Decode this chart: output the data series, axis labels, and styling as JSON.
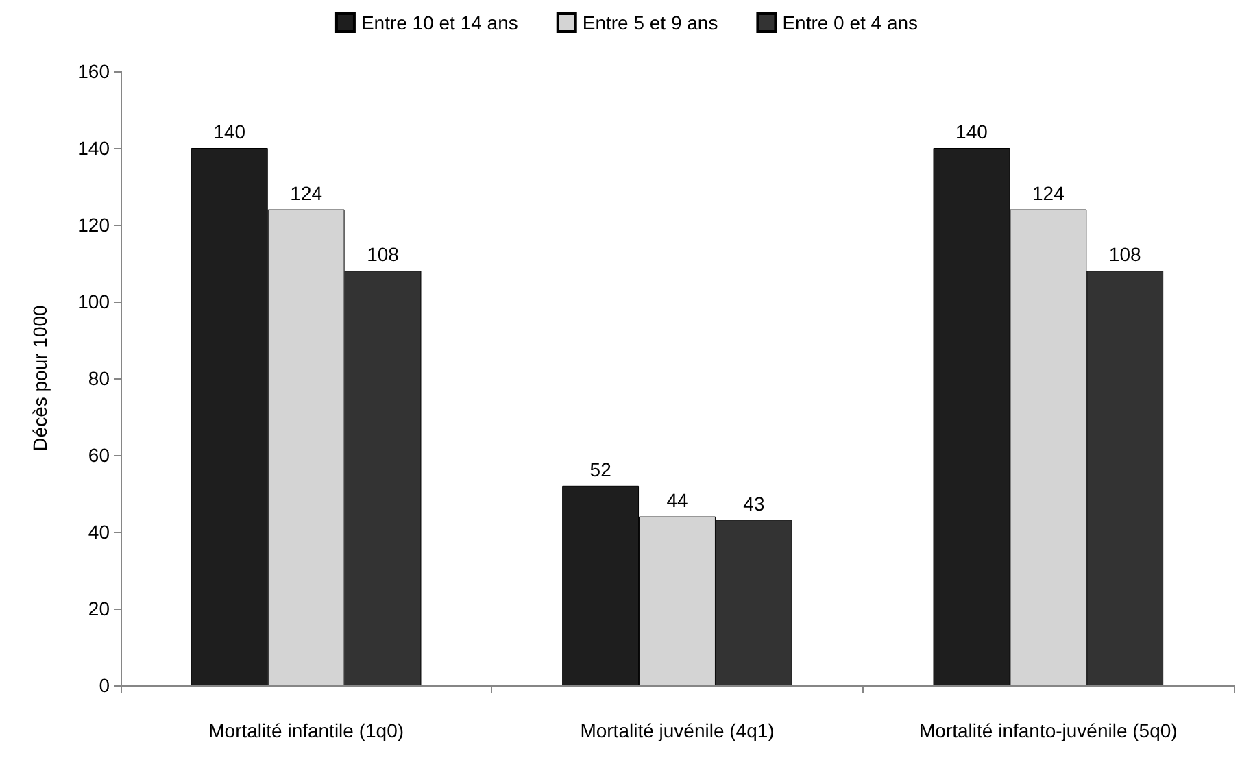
{
  "chart_data": {
    "type": "bar",
    "ylabel": "Décès pour 1000",
    "categories": [
      "Mortalité infantile (1q0)",
      "Mortalité juvénile (4q1)",
      "Mortalité infanto-juvénile (5q0)"
    ],
    "series": [
      {
        "name": "Entre 10 et 14 ans",
        "color": "#1e1e1e",
        "values": [
          140,
          52,
          140
        ]
      },
      {
        "name": "Entre 5 et 9 ans",
        "color": "#d4d4d4",
        "values": [
          124,
          44,
          124
        ]
      },
      {
        "name": "Entre 0 et 4 ans",
        "color": "#333333",
        "values": [
          108,
          43,
          108
        ]
      }
    ],
    "ylim": [
      0,
      160
    ],
    "yticks": [
      0,
      20,
      40,
      60,
      80,
      100,
      120,
      140,
      160
    ],
    "grid": false,
    "legend": "top",
    "data_labels": true
  }
}
